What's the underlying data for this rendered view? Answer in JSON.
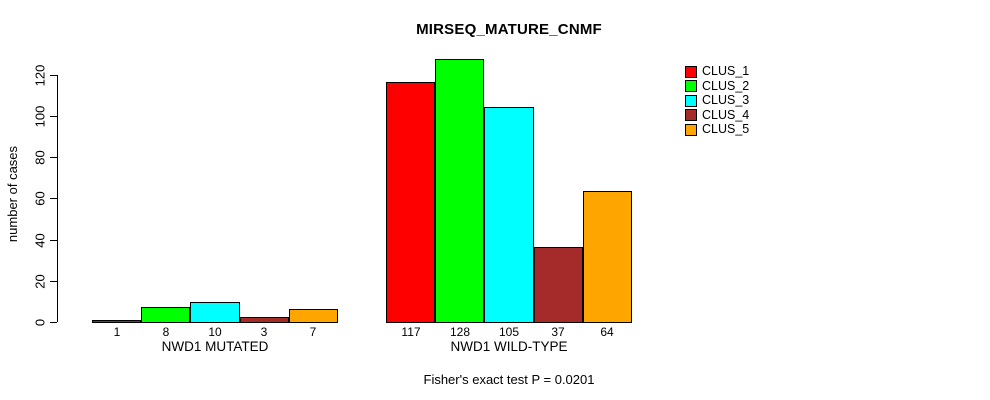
{
  "chart_data": {
    "type": "bar",
    "title": "MIRSEQ_MATURE_CNMF",
    "ylabel": "number of cases",
    "xlabel": "",
    "annotation": "Fisher's exact test P = 0.0201",
    "categories": [
      "NWD1 MUTATED",
      "NWD1 WILD-TYPE"
    ],
    "series": [
      {
        "name": "CLUS_1",
        "color": "#FF0000",
        "values": [
          1,
          117
        ]
      },
      {
        "name": "CLUS_2",
        "color": "#00FF00",
        "values": [
          8,
          128
        ]
      },
      {
        "name": "CLUS_3",
        "color": "#00FFFF",
        "values": [
          10,
          105
        ]
      },
      {
        "name": "CLUS_4",
        "color": "#A52A2A",
        "values": [
          3,
          37
        ]
      },
      {
        "name": "CLUS_5",
        "color": "#FFA500",
        "values": [
          7,
          64
        ]
      }
    ],
    "yticks": [
      0,
      20,
      40,
      60,
      80,
      100,
      120
    ],
    "ylim": [
      0,
      131
    ],
    "bar_values_shown": true,
    "grid": false,
    "legend": {
      "position": "top-right"
    },
    "axis_color": "#000000",
    "background_color": "#FFFFFF"
  }
}
